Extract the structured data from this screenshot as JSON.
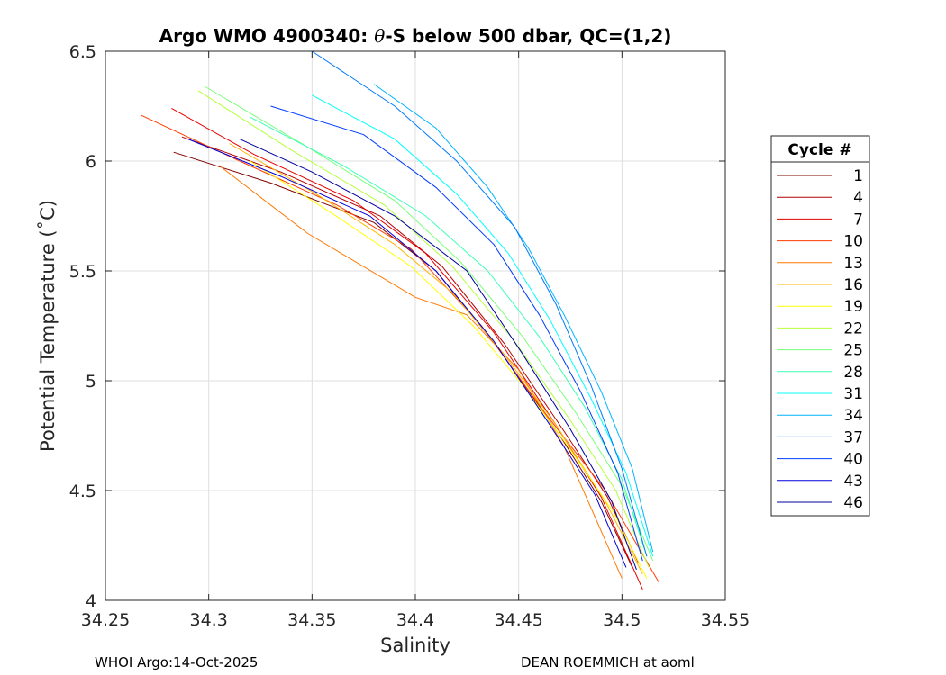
{
  "chart_data": {
    "type": "line",
    "title_prefix": "Argo WMO 4900340: ",
    "title_theta": "θ",
    "title_suffix": "-S below 500 dbar,  QC=(1,2)",
    "xlabel": "Salinity",
    "ylabel": "Potential Temperature (˚C)",
    "xlim": [
      34.25,
      34.55
    ],
    "ylim": [
      4,
      6.5
    ],
    "xticks": [
      "34.25",
      "34.3",
      "34.35",
      "34.4",
      "34.45",
      "34.5",
      "34.55"
    ],
    "yticks": [
      "4",
      "4.5",
      "5",
      "5.5",
      "6",
      "6.5"
    ],
    "grid": true,
    "legend_title": "Cycle #",
    "legend_location": "outside-right",
    "series": [
      {
        "name": "1",
        "color": "#800000",
        "x": [
          34.283,
          34.33,
          34.38,
          34.41,
          34.44,
          34.47,
          34.49,
          34.505
        ],
        "y": [
          6.04,
          5.9,
          5.72,
          5.5,
          5.15,
          4.75,
          4.45,
          4.15
        ]
      },
      {
        "name": "4",
        "color": "#b40000",
        "x": [
          34.287,
          34.335,
          34.383,
          34.413,
          34.443,
          34.472,
          34.493,
          34.508
        ],
        "y": [
          6.11,
          5.95,
          5.75,
          5.52,
          5.17,
          4.77,
          4.47,
          4.17
        ]
      },
      {
        "name": "7",
        "color": "#e60000",
        "x": [
          34.282,
          34.322,
          34.37,
          34.405,
          34.438,
          34.468,
          34.49,
          34.51
        ],
        "y": [
          6.24,
          6.03,
          5.82,
          5.58,
          5.22,
          4.8,
          4.47,
          4.05
        ]
      },
      {
        "name": "10",
        "color": "#ff3c00",
        "x": [
          34.267,
          34.315,
          34.362,
          34.398,
          34.432,
          34.463,
          34.492,
          34.518
        ],
        "y": [
          6.21,
          6.0,
          5.8,
          5.6,
          5.25,
          4.85,
          4.5,
          4.08
        ]
      },
      {
        "name": "13",
        "color": "#ff7800",
        "x": [
          34.305,
          34.348,
          34.4,
          34.425,
          34.45,
          34.472,
          34.5
        ],
        "y": [
          5.98,
          5.67,
          5.38,
          5.3,
          5.05,
          4.7,
          4.1
        ]
      },
      {
        "name": "16",
        "color": "#ffb400",
        "x": [
          34.31,
          34.352,
          34.39,
          34.418,
          34.443,
          34.468,
          34.492,
          34.51
        ],
        "y": [
          6.08,
          5.85,
          5.62,
          5.4,
          5.12,
          4.8,
          4.45,
          4.12
        ]
      },
      {
        "name": "19",
        "color": "#ffff00",
        "x": [
          34.32,
          34.36,
          34.398,
          34.428,
          34.452,
          34.474,
          34.496,
          34.512
        ],
        "y": [
          6.0,
          5.76,
          5.52,
          5.25,
          4.98,
          4.7,
          4.4,
          4.1
        ]
      },
      {
        "name": "22",
        "color": "#b4ff3c",
        "x": [
          34.295,
          34.34,
          34.385,
          34.418,
          34.448,
          34.475,
          34.497,
          34.513
        ],
        "y": [
          6.32,
          6.05,
          5.8,
          5.52,
          5.18,
          4.82,
          4.5,
          4.15
        ]
      },
      {
        "name": "25",
        "color": "#78ff78",
        "x": [
          34.298,
          34.345,
          34.39,
          34.422,
          34.452,
          34.478,
          34.5,
          34.515
        ],
        "y": [
          6.34,
          6.08,
          5.82,
          5.54,
          5.2,
          4.85,
          4.52,
          4.18
        ]
      },
      {
        "name": "28",
        "color": "#3cffb4",
        "x": [
          34.32,
          34.365,
          34.405,
          34.435,
          34.46,
          34.482,
          34.5,
          34.512
        ],
        "y": [
          6.2,
          5.98,
          5.75,
          5.5,
          5.2,
          4.88,
          4.55,
          4.2
        ]
      },
      {
        "name": "31",
        "color": "#00ffff",
        "x": [
          34.35,
          34.39,
          34.42,
          34.445,
          34.465,
          34.485,
          34.502,
          34.515
        ],
        "y": [
          6.3,
          6.1,
          5.85,
          5.58,
          5.28,
          4.92,
          4.58,
          4.2
        ]
      },
      {
        "name": "34",
        "color": "#00b4ff",
        "x": [
          34.38,
          34.41,
          34.435,
          34.455,
          34.472,
          34.49,
          34.505,
          34.515
        ],
        "y": [
          6.35,
          6.15,
          5.88,
          5.6,
          5.3,
          4.95,
          4.6,
          4.22
        ]
      },
      {
        "name": "37",
        "color": "#0078ff",
        "x": [
          34.35,
          34.39,
          34.42,
          34.448,
          34.468,
          34.485,
          34.5,
          34.512
        ],
        "y": [
          6.5,
          6.25,
          6.0,
          5.7,
          5.35,
          4.98,
          4.6,
          4.2
        ]
      },
      {
        "name": "40",
        "color": "#003cff",
        "x": [
          34.33,
          34.375,
          34.41,
          34.438,
          34.46,
          34.48,
          34.498,
          34.51
        ],
        "y": [
          6.25,
          6.12,
          5.88,
          5.62,
          5.3,
          4.95,
          4.58,
          4.18
        ]
      },
      {
        "name": "43",
        "color": "#0000dc",
        "x": [
          34.29,
          34.335,
          34.378,
          34.41,
          34.438,
          34.465,
          34.487,
          34.502
        ],
        "y": [
          6.1,
          5.93,
          5.75,
          5.5,
          5.18,
          4.8,
          4.48,
          4.15
        ]
      },
      {
        "name": "46",
        "color": "#0000a0",
        "x": [
          34.315,
          34.35,
          34.39,
          34.425,
          34.452,
          34.475,
          34.495,
          34.507
        ],
        "y": [
          6.1,
          5.95,
          5.75,
          5.5,
          5.12,
          4.78,
          4.45,
          4.14
        ]
      }
    ],
    "footer_left": "WHOI Argo:14-Oct-2025",
    "footer_right": "DEAN ROEMMICH at aoml"
  }
}
